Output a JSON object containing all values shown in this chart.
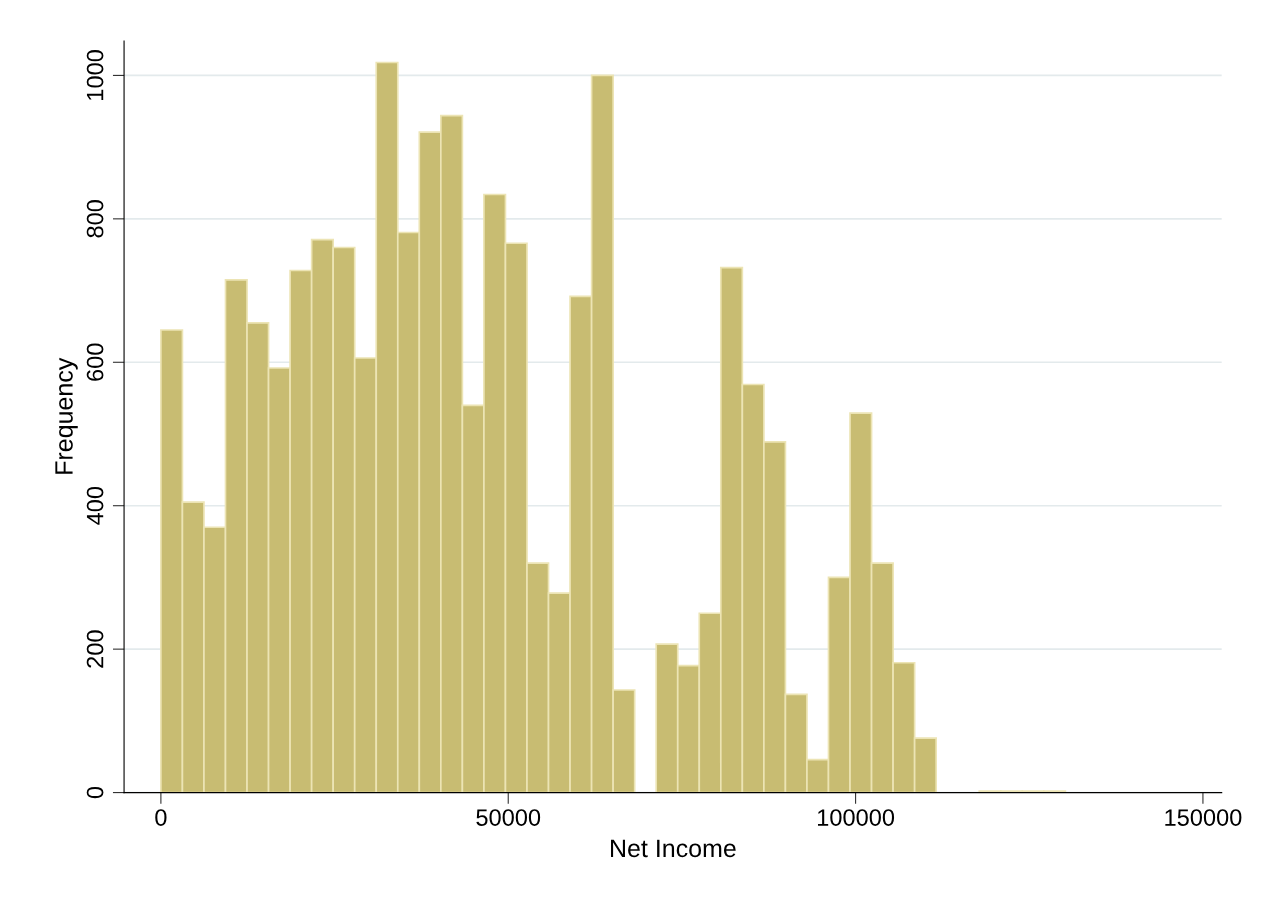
{
  "chart_data": {
    "type": "histogram",
    "xlabel": "Net Income",
    "ylabel": "Frequency",
    "bins": [
      0,
      3100,
      6200,
      9300,
      12400,
      15500,
      18600,
      21700,
      24800,
      27900,
      31000,
      34100,
      37200,
      40300,
      43400,
      46500,
      49600,
      52700,
      55800,
      58900,
      62000,
      65100,
      68200,
      71300,
      74400,
      77500,
      80600,
      83700,
      86800,
      89900,
      93000,
      96100,
      99200,
      102300,
      105400,
      108500,
      111600,
      114700,
      117800,
      120900,
      124000,
      127100,
      130200
    ],
    "values": [
      645,
      405,
      370,
      715,
      655,
      592,
      728,
      771,
      760,
      606,
      1018,
      781,
      921,
      944,
      540,
      834,
      766,
      320,
      278,
      692,
      1000,
      143,
      0,
      207,
      177,
      250,
      732,
      569,
      489,
      137,
      46,
      300,
      529,
      320,
      181,
      76,
      0,
      0,
      2,
      2,
      2,
      2
    ],
    "color": "#c8bc72",
    "xlim": [
      -5300,
      152700
    ],
    "ylim": [
      0,
      1048
    ],
    "xticks": [
      0,
      50000,
      100000,
      150000
    ],
    "yticks": [
      0,
      200,
      400,
      600,
      800,
      1000
    ],
    "grid": "y"
  }
}
